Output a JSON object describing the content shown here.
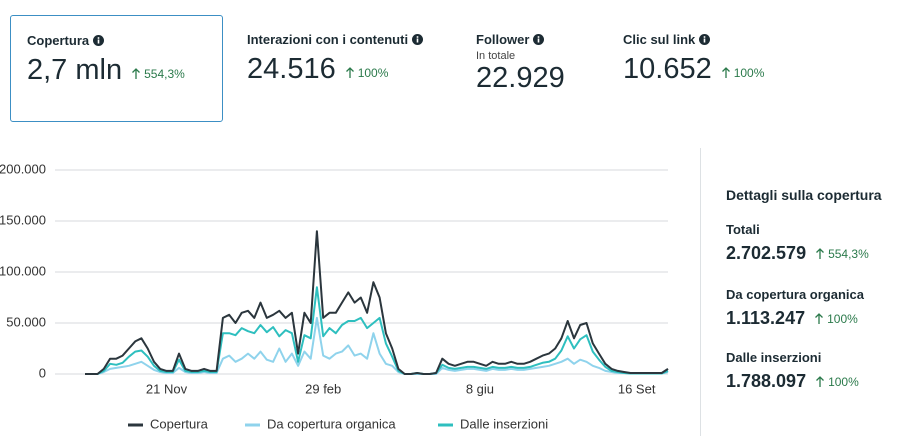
{
  "metrics": [
    {
      "title": "Copertura",
      "value": "2,7 mln",
      "change": "554,3%"
    },
    {
      "title": "Interazioni con i contenuti",
      "value": "24.516",
      "change": "100%"
    },
    {
      "title": "Follower",
      "subtitle": "In totale",
      "value": "22.929"
    },
    {
      "title": "Clic sul link",
      "value": "10.652",
      "change": "100%"
    }
  ],
  "chart_data": {
    "type": "line",
    "categories": [
      null,
      null,
      null,
      null,
      null,
      null,
      null,
      null,
      null,
      null,
      null,
      null,
      null,
      "21 Nov",
      null,
      null,
      null,
      null,
      null,
      null,
      null,
      null,
      null,
      null,
      null,
      null,
      null,
      null,
      null,
      null,
      null,
      null,
      null,
      null,
      null,
      null,
      null,
      null,
      "29 feb",
      null,
      null,
      null,
      null,
      null,
      null,
      null,
      null,
      null,
      null,
      null,
      null,
      null,
      null,
      null,
      null,
      null,
      null,
      null,
      null,
      null,
      null,
      null,
      null,
      "8 giu",
      null,
      null,
      null,
      null,
      null,
      null,
      null,
      null,
      null,
      null,
      null,
      null,
      null,
      null,
      null,
      null,
      null,
      null,
      null,
      null,
      null,
      null,
      null,
      null,
      "16 Set",
      null,
      null,
      null,
      null,
      null
    ],
    "series": [
      {
        "name": "Copertura",
        "color": "#2b363d",
        "values": [
          0,
          0,
          0,
          5000,
          15000,
          15000,
          18000,
          25000,
          32000,
          35000,
          25000,
          12000,
          5000,
          3000,
          3000,
          20000,
          5000,
          3000,
          3000,
          5000,
          3000,
          3000,
          55000,
          58000,
          50000,
          60000,
          62000,
          55000,
          70000,
          55000,
          58000,
          62000,
          55000,
          60000,
          20000,
          60000,
          50000,
          140000,
          55000,
          60000,
          60000,
          70000,
          80000,
          70000,
          75000,
          60000,
          90000,
          75000,
          40000,
          25000,
          5000,
          0,
          0,
          1000,
          0,
          0,
          1000,
          15000,
          10000,
          8000,
          10000,
          12000,
          12000,
          10000,
          8000,
          12000,
          10000,
          10000,
          12000,
          10000,
          10000,
          12000,
          15000,
          18000,
          20000,
          25000,
          35000,
          52000,
          35000,
          48000,
          50000,
          30000,
          20000,
          10000,
          5000,
          3000,
          2000,
          1000,
          1000,
          1000,
          1000,
          1000,
          1000,
          5000
        ]
      },
      {
        "name": "Da copertura organica",
        "color": "#8fd3ec",
        "values": [
          0,
          0,
          0,
          2000,
          5000,
          6000,
          7000,
          8000,
          10000,
          12000,
          8000,
          4000,
          2000,
          1000,
          1000,
          6000,
          2000,
          1000,
          1000,
          2000,
          1000,
          1000,
          15000,
          18000,
          12000,
          15000,
          20000,
          15000,
          22000,
          14000,
          12000,
          25000,
          12000,
          20000,
          8000,
          22000,
          15000,
          55000,
          18000,
          15000,
          20000,
          22000,
          28000,
          18000,
          20000,
          15000,
          40000,
          20000,
          10000,
          8000,
          2000,
          0,
          0,
          0,
          0,
          0,
          0,
          6000,
          4000,
          3000,
          4000,
          5000,
          5000,
          4000,
          3000,
          5000,
          4000,
          4000,
          5000,
          4000,
          4000,
          5000,
          6000,
          7000,
          8000,
          10000,
          12000,
          15000,
          10000,
          14000,
          12000,
          8000,
          6000,
          3000,
          2000,
          1000,
          1000,
          500,
          500,
          500,
          500,
          500,
          500,
          2000
        ]
      },
      {
        "name": "Dalle inserzioni",
        "color": "#2ebfbf",
        "values": [
          0,
          0,
          0,
          3000,
          10000,
          9000,
          11000,
          17000,
          22000,
          23000,
          17000,
          8000,
          3000,
          2000,
          2000,
          14000,
          3000,
          2000,
          2000,
          3000,
          2000,
          2000,
          40000,
          40000,
          38000,
          45000,
          42000,
          40000,
          48000,
          41000,
          46000,
          37000,
          43000,
          40000,
          12000,
          38000,
          35000,
          85000,
          37000,
          45000,
          40000,
          48000,
          52000,
          52000,
          55000,
          45000,
          50000,
          55000,
          30000,
          17000,
          3000,
          0,
          0,
          1000,
          0,
          0,
          1000,
          9000,
          6000,
          5000,
          6000,
          7000,
          7000,
          6000,
          5000,
          7000,
          6000,
          6000,
          7000,
          6000,
          6000,
          7000,
          9000,
          11000,
          12000,
          15000,
          23000,
          37000,
          25000,
          34000,
          38000,
          22000,
          14000,
          7000,
          3000,
          2000,
          1000,
          500,
          500,
          500,
          500,
          500,
          500,
          3000
        ]
      }
    ],
    "ylim": [
      0,
      200000
    ],
    "yticks": [
      0,
      {
        "value": 50000,
        "label": "50.000"
      },
      {
        "value": 100000,
        "label": "100.000"
      },
      {
        "value": 150000,
        "label": "150.000"
      },
      {
        "value": 200000,
        "label": "200.000"
      }
    ],
    "grid": true,
    "legend": "bottom"
  },
  "details": {
    "title": "Dettagli sulla copertura",
    "items": [
      {
        "label": "Totali",
        "value": "2.702.579",
        "change": "554,3%"
      },
      {
        "label": "Da copertura organica",
        "value": "1.113.247",
        "change": "100%"
      },
      {
        "label": "Dalle inserzioni",
        "value": "1.788.097",
        "change": "100%"
      }
    ]
  }
}
